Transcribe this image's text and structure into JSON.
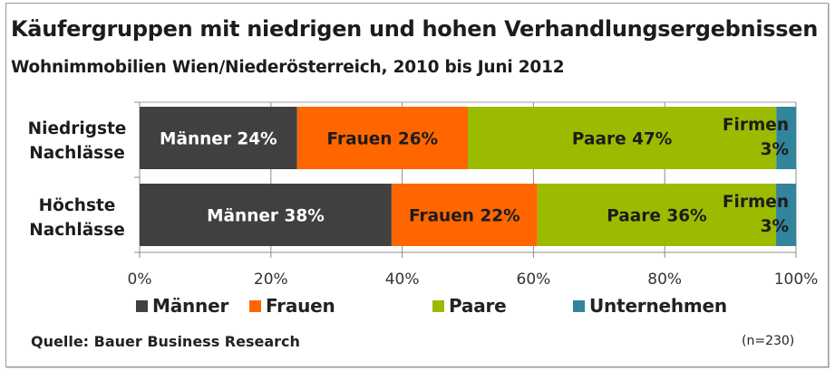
{
  "chart_data": {
    "type": "bar",
    "orientation": "horizontal",
    "stacked": "100%",
    "title": "Käufergruppen mit niedrigen und hohen Verhandlungsergebnissen",
    "subtitle": "Wohnimmobilien Wien/Niederösterreich, 2010 bis Juni 2012",
    "categories": [
      "Niedrigste Nachlässe",
      "Höchste Nachlässe"
    ],
    "category_lines": [
      [
        "Niedrigste",
        "Nachlässe"
      ],
      [
        "Höchste",
        "Nachlässe"
      ]
    ],
    "series": [
      {
        "name": "Männer",
        "color": "#404040",
        "label_color": "#ffffff",
        "values": [
          24,
          38
        ],
        "data_labels": [
          [
            "Männer 24%"
          ],
          [
            "Männer 38%"
          ]
        ]
      },
      {
        "name": "Frauen",
        "color": "#ff6600",
        "label_color": "#1c1c1c",
        "values": [
          26,
          22
        ],
        "data_labels": [
          [
            "Frauen 26%"
          ],
          [
            "Frauen 22%"
          ]
        ]
      },
      {
        "name": "Paare",
        "color": "#9bbb00",
        "label_color": "#1c1c1c",
        "values": [
          47,
          36
        ],
        "data_labels": [
          [
            "Paare 47%"
          ],
          [
            "Paare 36%"
          ]
        ]
      },
      {
        "name": "Unternehmen",
        "color": "#31849b",
        "label_color": "#1c1c1c",
        "values": [
          3,
          3
        ],
        "data_labels": [
          [
            "Firmen",
            "3%"
          ],
          [
            "Firmen",
            "3%"
          ]
        ]
      }
    ],
    "xlim": [
      0,
      100
    ],
    "xticks": [
      "0%",
      "20%",
      "40%",
      "60%",
      "80%",
      "100%"
    ],
    "xtick_values": [
      0,
      20,
      40,
      60,
      80,
      100
    ],
    "grid": true,
    "legend": {
      "placement": "bottom",
      "entries": [
        "Männer",
        "Frauen",
        "Paare",
        "Unternehmen"
      ]
    },
    "xlabel": "",
    "ylabel": ""
  },
  "header": {
    "title": "Käufergruppen mit niedrigen und hohen Verhandlungsergebnissen",
    "subtitle": "Wohnimmobilien Wien/Niederösterreich, 2010  bis Juni 2012"
  },
  "footer": {
    "source": "Quelle: Bauer Business Research",
    "sample_size": "(n=230)"
  }
}
